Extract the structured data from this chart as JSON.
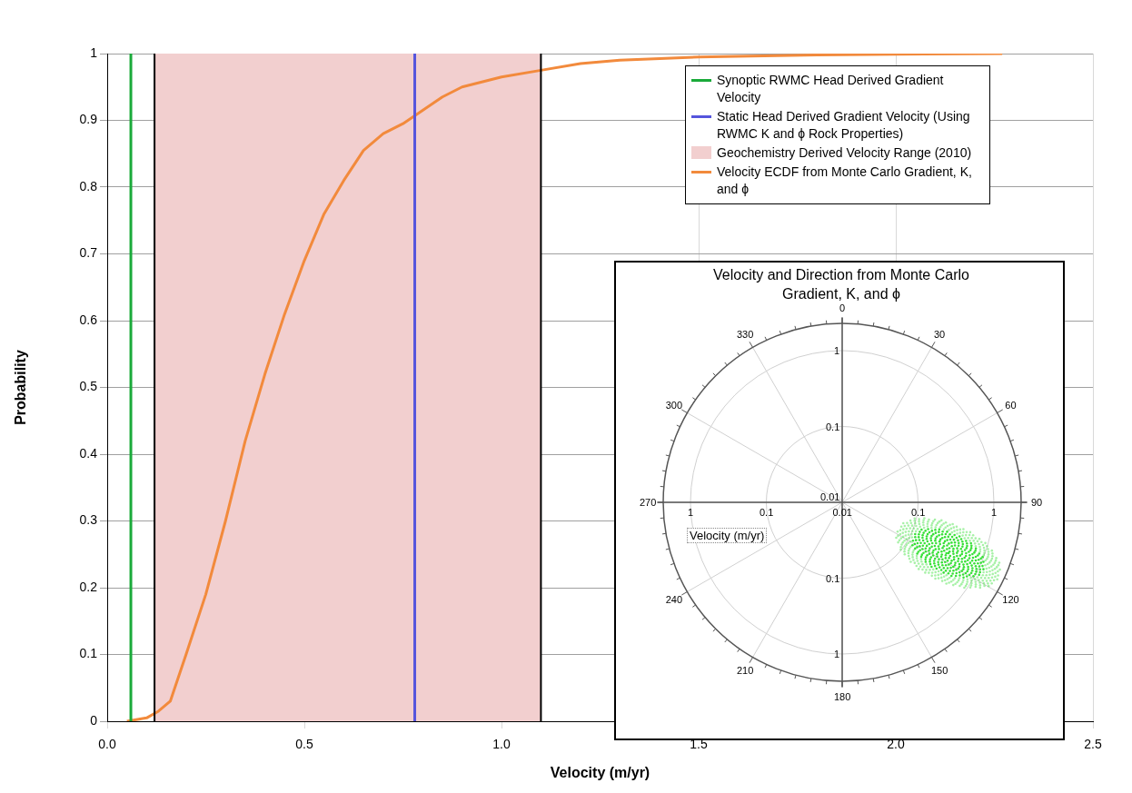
{
  "chart_data": [
    {
      "type": "line",
      "xlabel": "Velocity (m/yr)",
      "ylabel": "Probability",
      "xlim": [
        0,
        2.5
      ],
      "xticks": [
        {
          "value": 0,
          "label": "0.0"
        },
        {
          "value": 0.5,
          "label": "0.5"
        },
        {
          "value": 1,
          "label": "1.0"
        },
        {
          "value": 1.5,
          "label": "1.5"
        },
        {
          "value": 2,
          "label": "2.0"
        },
        {
          "value": 2.5,
          "label": "2.5"
        }
      ],
      "ylim": [
        0,
        1
      ],
      "yticks": [
        0,
        0.1,
        0.2,
        0.3,
        0.4,
        0.5,
        0.6,
        0.7,
        0.8,
        0.9,
        1
      ],
      "grid": true,
      "legend": "top right",
      "marker": "none",
      "line_style": "solid",
      "ref_lines": [
        {
          "axis": "x",
          "value": 0.12,
          "color": "#000000"
        },
        {
          "axis": "x",
          "value": 1.1,
          "color": "#000000"
        }
      ],
      "series": [
        {
          "name": "Synoptic RWMC Head Derived Gradient Velocity",
          "color": "#1aaa3a",
          "x": [
            0.06,
            0.06
          ],
          "values": [
            0,
            1
          ]
        },
        {
          "name": "Static Head Derived Gradient Velocity (Using RWMC K and ϕ Rock Properties)",
          "color": "#5555dd",
          "x": [
            0.78,
            0.78
          ],
          "values": [
            0,
            1
          ]
        },
        {
          "type": "area",
          "name": "Geochemistry Derived Velocity Range (2010)",
          "color": "#f2cfcf",
          "x": [
            0.12,
            1.1
          ],
          "values": [
            1,
            1
          ]
        },
        {
          "name": "Velocity ECDF from Monte Carlo Gradient, K, and ϕ",
          "color": "#f28a3c",
          "x": [
            0.05,
            0.1,
            0.13,
            0.16,
            0.2,
            0.25,
            0.3,
            0.35,
            0.4,
            0.45,
            0.5,
            0.55,
            0.6,
            0.65,
            0.7,
            0.75,
            0.8,
            0.85,
            0.9,
            1.0,
            1.1,
            1.2,
            1.3,
            1.5,
            1.8,
            2.0,
            2.27
          ],
          "values": [
            0,
            0.005,
            0.015,
            0.03,
            0.1,
            0.19,
            0.3,
            0.42,
            0.52,
            0.61,
            0.69,
            0.76,
            0.81,
            0.855,
            0.88,
            0.895,
            0.915,
            0.935,
            0.95,
            0.965,
            0.975,
            0.985,
            0.99,
            0.995,
            0.998,
            0.999,
            1
          ]
        }
      ]
    },
    {
      "type": "other",
      "title": "Velocity and Direction from Monte Carlo Gradient, K, and ϕ",
      "ylabel": "Velocity (m/yr)",
      "annotations": [
        "0",
        "30",
        "60",
        "90",
        "120",
        "150",
        "180",
        "210",
        "240",
        "270",
        "300",
        "330",
        "0.01",
        "0.1",
        "1",
        "1",
        "0.1",
        "0.01",
        "0.1",
        "1",
        "0.1",
        "1"
      ]
    }
  ]
}
